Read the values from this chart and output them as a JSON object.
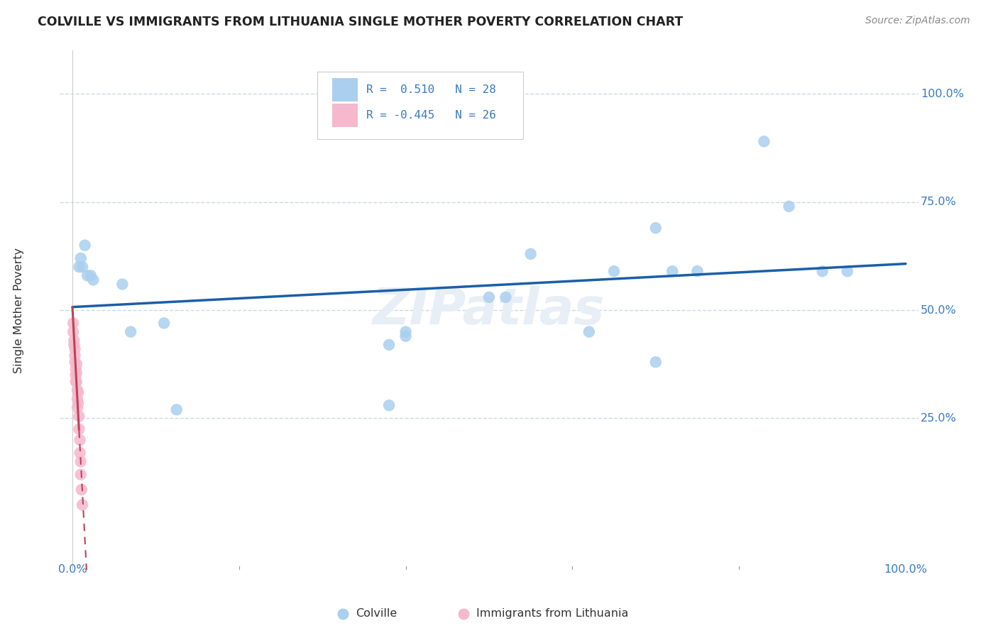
{
  "title": "COLVILLE VS IMMIGRANTS FROM LITHUANIA SINGLE MOTHER POVERTY CORRELATION CHART",
  "source": "Source: ZipAtlas.com",
  "ylabel": "Single Mother Poverty",
  "legend_r1": "R =  0.510   N = 28",
  "legend_r2": "R = -0.445   N = 26",
  "legend_label1": "Colville",
  "legend_label2": "Immigrants from Lithuania",
  "colville_color": "#aacfef",
  "colville_line_color": "#1a5fa8",
  "lithuania_color": "#f5b8cc",
  "lithuania_line_color": "#c0405a",
  "grid_color": "#c8d8e8",
  "background_color": "#ffffff",
  "colville_x": [
    0.008,
    0.01,
    0.012,
    0.015,
    0.018,
    0.022,
    0.025,
    0.06,
    0.07,
    0.11,
    0.125,
    0.38,
    0.4,
    0.5,
    0.52,
    0.55,
    0.62,
    0.65,
    0.7,
    0.75,
    0.83,
    0.86,
    0.9,
    0.93,
    0.38,
    0.4,
    0.7,
    0.72
  ],
  "colville_y": [
    0.6,
    0.62,
    0.6,
    0.65,
    0.58,
    0.58,
    0.57,
    0.56,
    0.45,
    0.47,
    0.27,
    0.28,
    0.45,
    0.53,
    0.53,
    0.63,
    0.45,
    0.59,
    0.69,
    0.59,
    0.89,
    0.74,
    0.59,
    0.59,
    0.42,
    0.44,
    0.38,
    0.59
  ],
  "lithuania_x": [
    0.001,
    0.001,
    0.002,
    0.002,
    0.003,
    0.003,
    0.003,
    0.004,
    0.004,
    0.004,
    0.005,
    0.005,
    0.005,
    0.006,
    0.006,
    0.006,
    0.007,
    0.007,
    0.008,
    0.008,
    0.009,
    0.009,
    0.01,
    0.01,
    0.011,
    0.012
  ],
  "lithuania_y": [
    0.47,
    0.45,
    0.43,
    0.42,
    0.41,
    0.395,
    0.38,
    0.365,
    0.35,
    0.335,
    0.375,
    0.355,
    0.335,
    0.315,
    0.295,
    0.275,
    0.31,
    0.285,
    0.255,
    0.225,
    0.2,
    0.17,
    0.15,
    0.12,
    0.085,
    0.05
  ],
  "xlim": [
    -0.015,
    1.015
  ],
  "ylim": [
    -0.1,
    1.1
  ],
  "yticks": [
    0.25,
    0.5,
    0.75,
    1.0
  ],
  "ytick_labels": [
    "25.0%",
    "50.0%",
    "75.0%",
    "100.0%"
  ],
  "xtick_left_label": "0.0%",
  "xtick_right_label": "100.0%"
}
